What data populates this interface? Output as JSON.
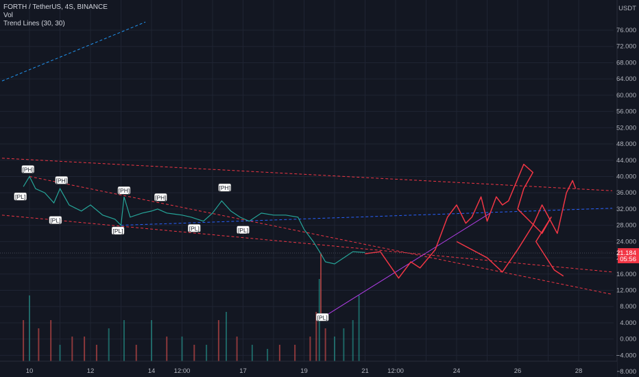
{
  "header": {
    "symbol_line": "FORTH / TetherUS, 4S, BINANCE",
    "volume_label": "Vol",
    "indicator_label": "Trend Lines (30, 30)"
  },
  "chart_data": {
    "type": "line",
    "price_axis": {
      "currency": "USDT",
      "ticks": [
        76,
        72,
        68,
        64,
        60,
        56,
        52,
        48,
        44,
        40,
        36,
        32,
        28,
        24,
        20,
        16,
        12,
        8,
        4,
        0,
        -4,
        -8
      ],
      "tick_labels": [
        "76.000",
        "72.000",
        "68.000",
        "64.000",
        "60.000",
        "56.000",
        "52.000",
        "48.000",
        "44.000",
        "40.000",
        "36.000",
        "32.000",
        "28.000",
        "24.000",
        "20.000",
        "16.000",
        "12.000",
        "8.000",
        "4.000",
        "0.000",
        "−4.000",
        "−8.000"
      ],
      "last_price": "21.184",
      "countdown": "05:56"
    },
    "time_axis": {
      "ticks": [
        10,
        11,
        12,
        13,
        14,
        15,
        16,
        17,
        18,
        19,
        20,
        21,
        22,
        23,
        24,
        25,
        26,
        27,
        28
      ],
      "tick_labels": [
        "10",
        "",
        "12",
        "",
        "14",
        "12:00",
        "",
        "17",
        "",
        "19",
        "",
        "21",
        "12:00",
        "",
        "24",
        "",
        "26",
        "",
        "28"
      ]
    },
    "price_path": [
      [
        9.8,
        37.5
      ],
      [
        10.0,
        40.0
      ],
      [
        10.2,
        37.0
      ],
      [
        10.5,
        36.0
      ],
      [
        10.8,
        33.5
      ],
      [
        11.0,
        37.0
      ],
      [
        11.3,
        33.0
      ],
      [
        11.7,
        31.5
      ],
      [
        12.0,
        33.0
      ],
      [
        12.4,
        30.5
      ],
      [
        12.8,
        29.5
      ],
      [
        13.0,
        28.0
      ],
      [
        13.1,
        35.0
      ],
      [
        13.3,
        30.0
      ],
      [
        13.7,
        31.0
      ],
      [
        14.0,
        31.5
      ],
      [
        14.2,
        32.0
      ],
      [
        14.5,
        31.0
      ],
      [
        15.0,
        30.5
      ],
      [
        15.3,
        30.0
      ],
      [
        15.7,
        29.0
      ],
      [
        16.0,
        31.0
      ],
      [
        16.3,
        34.0
      ],
      [
        16.6,
        31.5
      ],
      [
        16.9,
        30.0
      ],
      [
        17.2,
        29.0
      ],
      [
        17.6,
        31.0
      ],
      [
        18.0,
        30.5
      ],
      [
        18.4,
        30.5
      ],
      [
        18.8,
        30.0
      ],
      [
        19.0,
        27.0
      ],
      [
        19.3,
        24.0
      ],
      [
        19.55,
        21.0
      ],
      [
        19.7,
        19.0
      ],
      [
        20.0,
        18.5
      ],
      [
        20.3,
        20.0
      ],
      [
        20.6,
        21.5
      ],
      [
        21.0,
        21.3
      ]
    ],
    "volume_bars": [
      [
        9.8,
        5,
        "red"
      ],
      [
        10.0,
        8,
        "green"
      ],
      [
        10.3,
        4,
        "red"
      ],
      [
        10.7,
        5,
        "red"
      ],
      [
        11.0,
        2,
        "green"
      ],
      [
        11.4,
        3,
        "red"
      ],
      [
        11.8,
        3,
        "red"
      ],
      [
        12.2,
        2,
        "red"
      ],
      [
        12.6,
        4,
        "green"
      ],
      [
        13.1,
        5,
        "green"
      ],
      [
        13.5,
        2,
        "red"
      ],
      [
        14.0,
        5,
        "green"
      ],
      [
        14.5,
        3,
        "red"
      ],
      [
        15.0,
        3,
        "green"
      ],
      [
        15.4,
        2,
        "red"
      ],
      [
        15.8,
        2,
        "green"
      ],
      [
        16.2,
        5,
        "red"
      ],
      [
        16.45,
        6,
        "green"
      ],
      [
        16.8,
        3,
        "red"
      ],
      [
        17.3,
        2,
        "green"
      ],
      [
        17.8,
        1.5,
        "green"
      ],
      [
        18.2,
        2,
        "red"
      ],
      [
        18.7,
        2,
        "red"
      ],
      [
        19.2,
        3,
        "red"
      ],
      [
        19.4,
        6,
        "red"
      ],
      [
        19.5,
        10,
        "green"
      ],
      [
        19.7,
        4,
        "red"
      ],
      [
        20.0,
        3,
        "green"
      ],
      [
        20.3,
        4,
        "green"
      ],
      [
        20.6,
        5,
        "green"
      ],
      [
        20.8,
        8,
        "green"
      ]
    ],
    "trend_lines": [
      {
        "name": "",
        "color": "#f23645",
        "style": "dashed",
        "points": [
          [
            9.1,
            44.5
          ],
          [
            29.1,
            36.5
          ]
        ]
      },
      {
        "name": "",
        "color": "#f23645",
        "style": "dashed",
        "points": [
          [
            10.0,
            40.0
          ],
          [
            29.1,
            11.0
          ]
        ]
      },
      {
        "name": "",
        "color": "#f23645",
        "style": "dashed",
        "points": [
          [
            9.1,
            30.5
          ],
          [
            29.1,
            16.5
          ]
        ]
      },
      {
        "name": "",
        "color": "#2962ff",
        "style": "dashed",
        "points": [
          [
            13.0,
            28.0
          ],
          [
            29.1,
            32.2
          ]
        ]
      },
      {
        "name": "",
        "color": "#2196f3",
        "style": "dashed",
        "points": [
          [
            9.1,
            63.5
          ],
          [
            13.8,
            78.0
          ]
        ]
      },
      {
        "name": "",
        "color": "#b23ee8",
        "style": "solid",
        "points": [
          [
            19.8,
            6.2
          ],
          [
            25.1,
            31.0
          ]
        ]
      }
    ],
    "projection_path": [
      [
        21.0,
        21.0
      ],
      [
        21.5,
        21.5
      ],
      [
        22.1,
        15.0
      ],
      [
        22.5,
        19.0
      ],
      [
        22.8,
        17.5
      ],
      [
        23.3,
        22.0
      ],
      [
        23.7,
        30.0
      ],
      [
        24.0,
        33.0
      ],
      [
        24.3,
        28.5
      ],
      [
        24.5,
        30.0
      ],
      [
        24.8,
        35.0
      ],
      [
        25.0,
        29.0
      ],
      [
        25.3,
        35.0
      ],
      [
        25.5,
        33.0
      ],
      [
        25.7,
        34.0
      ],
      [
        26.2,
        43.0
      ],
      [
        26.5,
        41.0
      ],
      [
        26.2,
        37.0
      ],
      [
        26.0,
        32.0
      ],
      [
        26.8,
        26.0
      ],
      [
        27.1,
        30.0
      ],
      [
        26.6,
        24.0
      ],
      [
        27.2,
        17.0
      ],
      [
        27.5,
        15.5
      ]
    ],
    "projection_path_2": [
      [
        24.0,
        24.0
      ],
      [
        25.0,
        20.0
      ],
      [
        25.5,
        16.5
      ],
      [
        26.0,
        22.0
      ],
      [
        26.5,
        28.0
      ],
      [
        26.8,
        33.0
      ],
      [
        27.3,
        26.0
      ],
      [
        27.6,
        36.0
      ],
      [
        27.8,
        39.0
      ],
      [
        27.9,
        37.0
      ]
    ],
    "pivot_labels": [
      {
        "text": "[PH]",
        "x": 9.95,
        "y": 41.7,
        "kind": "high"
      },
      {
        "text": "[PL]",
        "x": 9.7,
        "y": 35.0,
        "kind": "low"
      },
      {
        "text": "[PH]",
        "x": 11.05,
        "y": 39.0,
        "kind": "high"
      },
      {
        "text": "[PL]",
        "x": 10.85,
        "y": 29.2,
        "kind": "low"
      },
      {
        "text": "[PH]",
        "x": 13.1,
        "y": 36.5,
        "kind": "high"
      },
      {
        "text": "[PL]",
        "x": 12.9,
        "y": 26.6,
        "kind": "low"
      },
      {
        "text": "[PH]",
        "x": 14.3,
        "y": 34.8,
        "kind": "high"
      },
      {
        "text": "[PL]",
        "x": 15.4,
        "y": 27.2,
        "kind": "low"
      },
      {
        "text": "[PH]",
        "x": 16.4,
        "y": 37.2,
        "kind": "high"
      },
      {
        "text": "[PL]",
        "x": 17.0,
        "y": 26.8,
        "kind": "low"
      },
      {
        "text": "[PL]",
        "x": 19.6,
        "y": 5.3,
        "kind": "low"
      }
    ],
    "colors": {
      "background": "#131722",
      "grid": "#1f2433",
      "up": "#26a69a",
      "down": "#ef5350",
      "price_tag": "#f23645",
      "text": "#b2b5be"
    }
  }
}
